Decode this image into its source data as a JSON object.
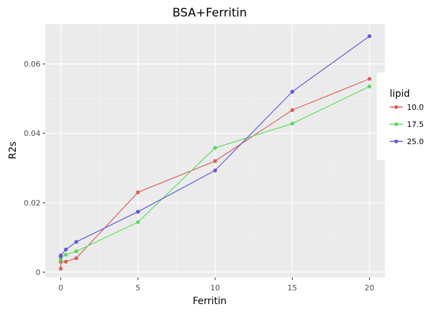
{
  "chart_data": {
    "type": "line",
    "title": "BSA+Ferritin",
    "xlabel": "Ferritin",
    "ylabel": "R2s",
    "xlim": [
      -1,
      21
    ],
    "ylim": [
      -0.0015,
      0.0715
    ],
    "xticks": [
      0,
      5,
      10,
      15,
      20
    ],
    "xtick_labels": [
      "0",
      "5",
      "10",
      "15",
      "20"
    ],
    "yticks": [
      0,
      0.02,
      0.04,
      0.06
    ],
    "ytick_labels": [
      "0",
      "0.02",
      "0.04",
      "0.06"
    ],
    "grid": true,
    "legend": {
      "title": "lipid",
      "position": "right"
    },
    "series": [
      {
        "name": "10.0",
        "color": "#db5f57",
        "points": [
          [
            0,
            0.001
          ],
          [
            0,
            0.003
          ],
          [
            0.33,
            0.003
          ],
          [
            1,
            0.004
          ],
          [
            5,
            0.023
          ],
          [
            10,
            0.032
          ],
          [
            15,
            0.0467
          ],
          [
            20,
            0.0557
          ]
        ]
      },
      {
        "name": "17.5",
        "color": "#57db5f",
        "points": [
          [
            0,
            0.0035
          ],
          [
            0,
            0.0043
          ],
          [
            0.33,
            0.005
          ],
          [
            1,
            0.006
          ],
          [
            5,
            0.0144
          ],
          [
            10,
            0.0358
          ],
          [
            15,
            0.0428
          ],
          [
            20,
            0.0535
          ]
        ]
      },
      {
        "name": "25.0",
        "color": "#5f57db",
        "points": [
          [
            0,
            0.0045
          ],
          [
            0,
            0.0048
          ],
          [
            0.33,
            0.0065
          ],
          [
            1,
            0.0087
          ],
          [
            5,
            0.0174
          ],
          [
            10,
            0.0293
          ],
          [
            15,
            0.052
          ],
          [
            20,
            0.068
          ]
        ]
      }
    ]
  }
}
